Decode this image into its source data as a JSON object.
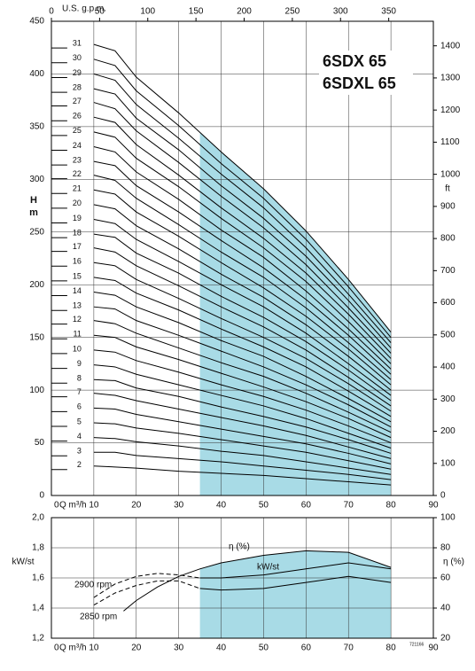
{
  "chart_data": [
    {
      "type": "line",
      "title": "6SDX 65",
      "subtitle": "6SDXL 65",
      "x_label": "Q m³/h",
      "y_label": "H",
      "y_unit": "m",
      "y2_label": "ft",
      "top_axis_label": "U.S. g.p.m.",
      "xlim": [
        0,
        90
      ],
      "xticks": [
        0,
        10,
        20,
        30,
        40,
        50,
        60,
        70,
        80,
        90
      ],
      "ylim": [
        0,
        450
      ],
      "yticks": [
        0,
        50,
        100,
        150,
        200,
        250,
        300,
        350,
        400,
        450
      ],
      "y2lim": [
        0,
        1476.4
      ],
      "y2ticks": [
        0,
        100,
        200,
        300,
        400,
        500,
        600,
        700,
        800,
        900,
        1000,
        1100,
        1200,
        1300,
        1400
      ],
      "top_xlim": [
        0,
        396.3
      ],
      "top_xticks": [
        0,
        50,
        100,
        150,
        200,
        250,
        300,
        350
      ],
      "shaded_range": [
        35,
        80
      ],
      "shade_color": "#a8dbe6",
      "grid": true,
      "x": [
        10,
        15,
        20,
        30,
        40,
        50,
        60,
        70,
        80
      ],
      "series": [
        {
          "name": "2",
          "color": "#000",
          "values": [
            28,
            27,
            26,
            23,
            21,
            19,
            16,
            13,
            10
          ]
        },
        {
          "name": "3",
          "color": "#000",
          "values": [
            41,
            41,
            38,
            35,
            32,
            28,
            24,
            20,
            15
          ]
        },
        {
          "name": "4",
          "color": "#000",
          "values": [
            55,
            54,
            51,
            47,
            42,
            38,
            32,
            26,
            20
          ]
        },
        {
          "name": "5",
          "color": "#000",
          "values": [
            69,
            68,
            64,
            59,
            53,
            47,
            41,
            33,
            25
          ]
        },
        {
          "name": "6",
          "color": "#000",
          "values": [
            83,
            82,
            77,
            70,
            63,
            56,
            49,
            40,
            30
          ]
        },
        {
          "name": "7",
          "color": "#000",
          "values": [
            97,
            95,
            90,
            82,
            74,
            66,
            57,
            46,
            35
          ]
        },
        {
          "name": "8",
          "color": "#000",
          "values": [
            110,
            109,
            102,
            94,
            84,
            75,
            65,
            53,
            40
          ]
        },
        {
          "name": "9",
          "color": "#000",
          "values": [
            124,
            122,
            115,
            105,
            95,
            85,
            73,
            59,
            45
          ]
        },
        {
          "name": "10",
          "color": "#000",
          "values": [
            138,
            136,
            128,
            117,
            105,
            94,
            81,
            66,
            50
          ]
        },
        {
          "name": "11",
          "color": "#000",
          "values": [
            152,
            150,
            141,
            129,
            116,
            103,
            89,
            73,
            55
          ]
        },
        {
          "name": "12",
          "color": "#000",
          "values": [
            166,
            163,
            154,
            140,
            126,
            113,
            97,
            79,
            60
          ]
        },
        {
          "name": "13",
          "color": "#000",
          "values": [
            179,
            177,
            166,
            152,
            137,
            122,
            105,
            86,
            65
          ]
        },
        {
          "name": "14",
          "color": "#000",
          "values": [
            193,
            190,
            179,
            164,
            147,
            132,
            113,
            92,
            70
          ]
        },
        {
          "name": "15",
          "color": "#000",
          "values": [
            207,
            204,
            192,
            176,
            158,
            141,
            122,
            99,
            75
          ]
        },
        {
          "name": "16",
          "color": "#000",
          "values": [
            221,
            218,
            205,
            187,
            168,
            150,
            130,
            106,
            80
          ]
        },
        {
          "name": "17",
          "color": "#000",
          "values": [
            235,
            231,
            218,
            199,
            179,
            160,
            138,
            112,
            85
          ]
        },
        {
          "name": "18",
          "color": "#000",
          "values": [
            248,
            245,
            230,
            211,
            189,
            169,
            146,
            119,
            90
          ]
        },
        {
          "name": "19",
          "color": "#000",
          "values": [
            262,
            258,
            243,
            222,
            200,
            179,
            154,
            125,
            95
          ]
        },
        {
          "name": "20",
          "color": "#000",
          "values": [
            276,
            272,
            256,
            234,
            210,
            188,
            162,
            132,
            100
          ]
        },
        {
          "name": "21",
          "color": "#000",
          "values": [
            290,
            286,
            269,
            246,
            221,
            197,
            170,
            139,
            105
          ]
        },
        {
          "name": "22",
          "color": "#000",
          "values": [
            304,
            299,
            282,
            257,
            231,
            207,
            178,
            145,
            110
          ]
        },
        {
          "name": "23",
          "color": "#000",
          "values": [
            317,
            313,
            294,
            269,
            242,
            216,
            186,
            152,
            115
          ]
        },
        {
          "name": "24",
          "color": "#000",
          "values": [
            331,
            326,
            307,
            281,
            252,
            226,
            194,
            158,
            120
          ]
        },
        {
          "name": "25",
          "color": "#000",
          "values": [
            345,
            340,
            320,
            293,
            263,
            235,
            203,
            165,
            125
          ]
        },
        {
          "name": "26",
          "color": "#000",
          "values": [
            359,
            354,
            333,
            304,
            273,
            244,
            211,
            172,
            130
          ]
        },
        {
          "name": "27",
          "color": "#000",
          "values": [
            373,
            367,
            346,
            316,
            284,
            254,
            219,
            178,
            135
          ]
        },
        {
          "name": "28",
          "color": "#000",
          "values": [
            386,
            381,
            358,
            328,
            294,
            263,
            227,
            185,
            140
          ]
        },
        {
          "name": "29",
          "color": "#000",
          "values": [
            400,
            394,
            371,
            339,
            305,
            273,
            235,
            191,
            145
          ]
        },
        {
          "name": "30",
          "color": "#000",
          "values": [
            414,
            408,
            384,
            351,
            315,
            282,
            243,
            198,
            150
          ]
        },
        {
          "name": "31",
          "color": "#000",
          "values": [
            428,
            422,
            397,
            363,
            326,
            291,
            251,
            205,
            155
          ]
        }
      ]
    },
    {
      "type": "line",
      "x_label": "Q m³/h",
      "y_label": "kW/st",
      "y2_label": "η (%)",
      "annotations": [
        "η (%)",
        "kW/st"
      ],
      "footnote": "721166",
      "xlim": [
        0,
        90
      ],
      "xticks": [
        0,
        10,
        20,
        30,
        40,
        50,
        60,
        70,
        80,
        90
      ],
      "ylim": [
        1.2,
        2.0
      ],
      "yticks": [
        {
          "value": 1.2,
          "label": "1,2"
        },
        {
          "value": 1.4,
          "label": "1,4"
        },
        {
          "value": 1.6,
          "label": "1,6"
        },
        {
          "value": 1.8,
          "label": "1,8"
        },
        {
          "value": 2.0,
          "label": "2,0"
        }
      ],
      "y2lim": [
        20,
        100
      ],
      "y2ticks": [
        20,
        40,
        60,
        80,
        100
      ],
      "shaded_range": [
        35,
        80
      ],
      "shade_color": "#a8dbe6",
      "dashed_below": 35,
      "grid": true,
      "series": [
        {
          "name": "η (%)",
          "axis": "y2",
          "color": "#000",
          "x": [
            17,
            20,
            25,
            30,
            35,
            40,
            50,
            60,
            70,
            80
          ],
          "values": [
            38,
            45,
            54,
            61,
            66,
            70,
            75,
            78,
            77,
            67
          ]
        },
        {
          "name": "2900 rpm",
          "color": "#000",
          "x": [
            10,
            15,
            20,
            25,
            30,
            35,
            40,
            50,
            60,
            70,
            80
          ],
          "values": [
            1.47,
            1.56,
            1.61,
            1.63,
            1.62,
            1.6,
            1.6,
            1.62,
            1.66,
            1.7,
            1.66
          ]
        },
        {
          "name": "2850 rpm",
          "color": "#000",
          "x": [
            10,
            15,
            20,
            25,
            30,
            35,
            40,
            50,
            60,
            70,
            80
          ],
          "values": [
            1.42,
            1.5,
            1.55,
            1.58,
            1.58,
            1.53,
            1.52,
            1.53,
            1.57,
            1.61,
            1.57
          ]
        }
      ]
    }
  ]
}
